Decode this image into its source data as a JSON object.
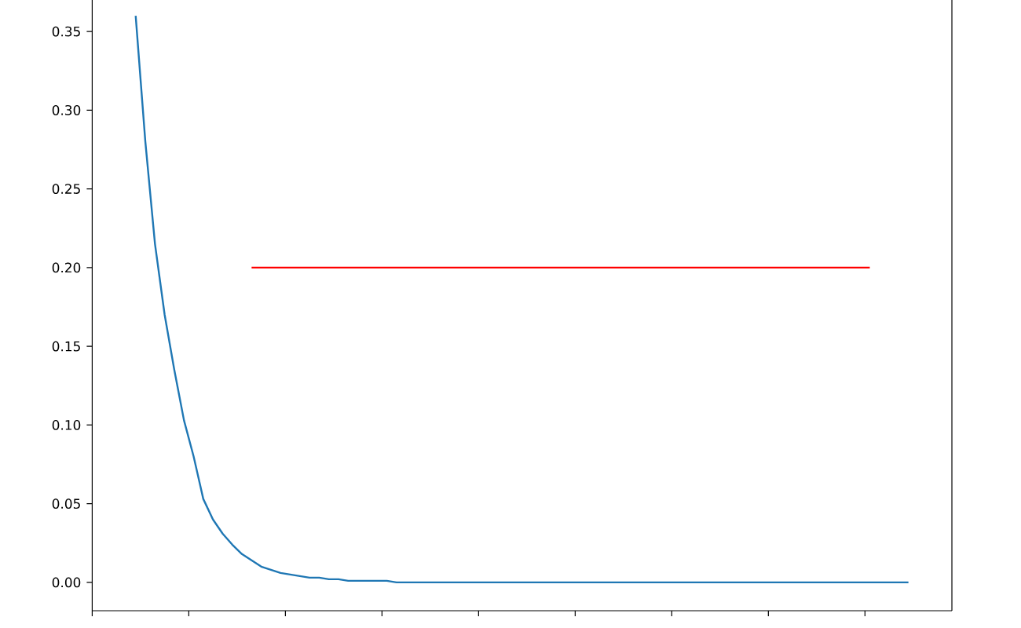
{
  "chart_data": {
    "type": "line",
    "ylim": [
      -0.018,
      0.37
    ],
    "categories": [
      null,
      null,
      null,
      null,
      null,
      null,
      null,
      null,
      null,
      null,
      null,
      null,
      null,
      null,
      null,
      null,
      null,
      null,
      null,
      null,
      null,
      null,
      null,
      null,
      null,
      null,
      null,
      null,
      null,
      null,
      null,
      null,
      null,
      null,
      null,
      null,
      null,
      null,
      null,
      null,
      null,
      null,
      null,
      null,
      null,
      null,
      null,
      null,
      null,
      null,
      null,
      null,
      null,
      null,
      null,
      null,
      null,
      null,
      null,
      null,
      null,
      null,
      null,
      null,
      null,
      null,
      null,
      null,
      null,
      null,
      null,
      null,
      null,
      null,
      null,
      null,
      null,
      null,
      null,
      null,
      null,
      null,
      null,
      null,
      null,
      null,
      null,
      null,
      null
    ],
    "yticks": [
      {
        "value": 0,
        "label": "0.00"
      },
      {
        "value": 0.05,
        "label": "0.05"
      },
      {
        "value": 0.1,
        "label": "0.10"
      },
      {
        "value": 0.15,
        "label": "0.15"
      },
      {
        "value": 0.2,
        "label": "0.20"
      },
      {
        "value": 0.25,
        "label": "0.25"
      },
      {
        "value": 0.3,
        "label": "0.30"
      },
      {
        "value": 0.35,
        "label": "0.35"
      }
    ],
    "tick_labels": "y",
    "series": [
      {
        "color": "#1f77b4",
        "values": [
          null,
          null,
          null,
          null,
          0.36,
          0.28,
          0.215,
          0.17,
          0.135,
          0.103,
          0.08,
          0.053,
          0.04,
          0.031,
          0.024,
          0.018,
          0.014,
          0.01,
          0.008,
          0.006,
          0.005,
          0.004,
          0.003,
          0.003,
          0.002,
          0.002,
          0.001,
          0.001,
          0.001,
          0.001,
          0.001,
          0,
          0,
          0,
          0,
          0,
          0,
          0,
          0,
          0,
          0,
          0,
          0,
          0,
          0,
          0,
          0,
          0,
          0,
          0,
          0,
          0,
          0,
          0,
          0,
          0,
          0,
          0,
          0,
          0,
          0,
          0,
          0,
          0,
          0,
          0,
          0,
          0,
          0,
          0,
          0,
          0,
          0,
          0,
          0,
          0,
          0,
          0,
          0,
          0,
          0,
          0,
          0,
          0,
          0,
          null,
          null,
          null,
          null
        ]
      },
      {
        "color": "#ff0000",
        "values": [
          null,
          null,
          null,
          null,
          null,
          null,
          null,
          null,
          null,
          null,
          null,
          null,
          null,
          null,
          null,
          null,
          0.2,
          0.2,
          0.2,
          0.2,
          0.2,
          0.2,
          0.2,
          0.2,
          0.2,
          0.2,
          0.2,
          0.2,
          0.2,
          0.2,
          0.2,
          0.2,
          0.2,
          0.2,
          0.2,
          0.2,
          0.2,
          0.2,
          0.2,
          0.2,
          0.2,
          0.2,
          0.2,
          0.2,
          0.2,
          0.2,
          0.2,
          0.2,
          0.2,
          0.2,
          0.2,
          0.2,
          0.2,
          0.2,
          0.2,
          0.2,
          0.2,
          0.2,
          0.2,
          0.2,
          0.2,
          0.2,
          0.2,
          0.2,
          0.2,
          0.2,
          0.2,
          0.2,
          0.2,
          0.2,
          0.2,
          0.2,
          0.2,
          0.2,
          0.2,
          0.2,
          0.2,
          0.2,
          0.2,
          0.2,
          0.2,
          null,
          null,
          null,
          null,
          null,
          null,
          null,
          null
        ]
      }
    ]
  }
}
